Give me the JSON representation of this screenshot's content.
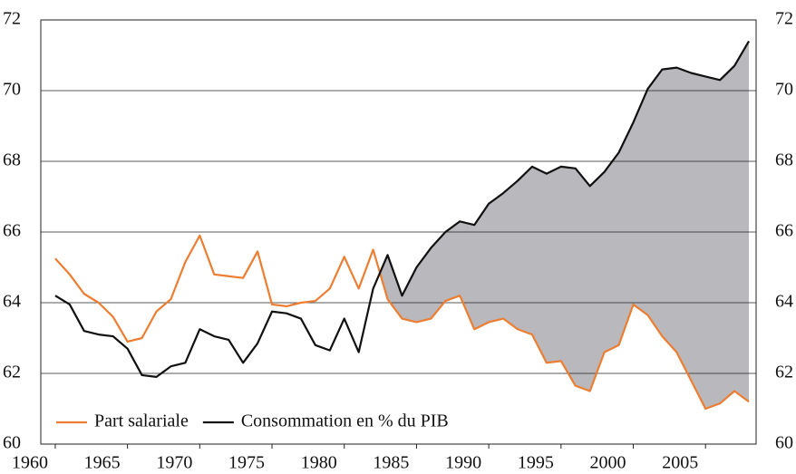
{
  "chart_data": {
    "type": "line",
    "x": [
      1960,
      1961,
      1962,
      1963,
      1964,
      1965,
      1966,
      1967,
      1968,
      1969,
      1970,
      1971,
      1972,
      1973,
      1974,
      1975,
      1976,
      1977,
      1978,
      1979,
      1980,
      1981,
      1982,
      1983,
      1984,
      1985,
      1986,
      1987,
      1988,
      1989,
      1990,
      1991,
      1992,
      1993,
      1994,
      1995,
      1996,
      1997,
      1998,
      1999,
      2000,
      2001,
      2002,
      2003,
      2004,
      2005,
      2006,
      2007,
      2008
    ],
    "series": [
      {
        "name": "Part salariale",
        "color": "#ed7d31",
        "values": [
          65.25,
          64.8,
          64.25,
          64.0,
          63.6,
          62.9,
          63.0,
          63.75,
          64.1,
          65.15,
          65.9,
          64.8,
          64.75,
          64.7,
          65.45,
          63.95,
          63.9,
          64.0,
          64.05,
          64.4,
          65.3,
          64.4,
          65.5,
          64.1,
          63.55,
          63.45,
          63.55,
          64.05,
          64.2,
          63.25,
          63.45,
          63.55,
          63.25,
          63.1,
          62.3,
          62.35,
          61.65,
          61.5,
          62.6,
          62.8,
          63.95,
          63.65,
          63.05,
          62.6,
          61.8,
          61.0,
          61.15,
          61.5,
          61.2
        ]
      },
      {
        "name": "Consommation en % du PIB",
        "color": "#111111",
        "values": [
          64.2,
          63.95,
          63.2,
          63.1,
          63.05,
          62.7,
          61.95,
          61.9,
          62.2,
          62.3,
          63.25,
          63.05,
          62.95,
          62.3,
          62.85,
          63.75,
          63.7,
          63.55,
          62.8,
          62.65,
          63.55,
          62.6,
          64.4,
          65.35,
          64.2,
          65.0,
          65.55,
          66.0,
          66.3,
          66.2,
          66.8,
          67.1,
          67.45,
          67.85,
          67.65,
          67.85,
          67.8,
          67.3,
          67.7,
          68.25,
          69.1,
          70.05,
          70.6,
          70.65,
          70.5,
          70.4,
          70.3,
          70.7,
          71.4
        ]
      }
    ],
    "xlim": [
      1959,
      2008.5
    ],
    "xticks": [
      1960,
      1965,
      1970,
      1975,
      1980,
      1985,
      1990,
      1995,
      2000,
      2005
    ],
    "ylim": [
      60,
      72
    ],
    "yticks": [
      60,
      62,
      64,
      66,
      68,
      70,
      72
    ],
    "y2lim": [
      60,
      72
    ],
    "y2ticks": [
      60,
      62,
      64,
      66,
      68,
      70,
      72
    ],
    "grid": true,
    "fill_between": "#b9b9bd",
    "legend": "lower left"
  }
}
